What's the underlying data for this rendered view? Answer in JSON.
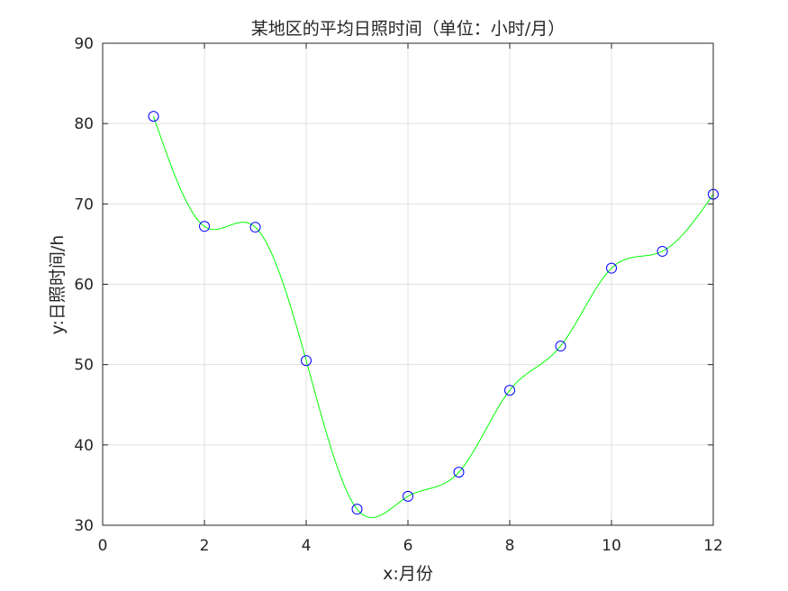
{
  "chart_data": {
    "type": "line",
    "title": "某地区的平均日照时间（单位：小时/月）",
    "xlabel": "x:月份",
    "ylabel": "y:日照时间/h",
    "xlim": [
      0,
      12
    ],
    "ylim": [
      30,
      90
    ],
    "xticks": [
      0,
      2,
      4,
      6,
      8,
      10,
      12
    ],
    "yticks": [
      30,
      40,
      50,
      60,
      70,
      80,
      90
    ],
    "grid": true,
    "series": [
      {
        "style": "markers",
        "marker": "circle",
        "color": "#0000ff",
        "x": [
          1,
          2,
          3,
          4,
          5,
          6,
          7,
          8,
          9,
          10,
          11,
          12
        ],
        "y": [
          80.9,
          67.2,
          67.1,
          50.5,
          32.0,
          33.6,
          36.6,
          46.8,
          52.3,
          62.0,
          64.1,
          71.2
        ]
      },
      {
        "style": "smooth-line",
        "color": "#00ff00",
        "x": [
          1,
          2,
          3,
          4,
          5,
          6,
          7,
          8,
          9,
          10,
          11,
          12
        ],
        "y": [
          80.9,
          67.2,
          67.1,
          50.5,
          32.0,
          33.6,
          36.6,
          46.8,
          52.3,
          62.0,
          64.1,
          71.2
        ]
      }
    ]
  }
}
